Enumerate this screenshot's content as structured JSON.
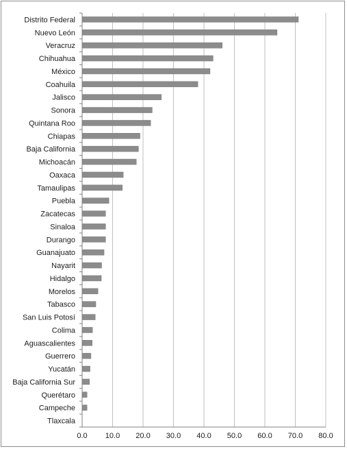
{
  "chart_data": {
    "type": "bar",
    "orientation": "horizontal",
    "categories": [
      "Distrito Federal",
      "Nuevo León",
      "Veracruz",
      "Chihuahua",
      "México",
      "Coahuila",
      "Jalisco",
      "Sonora",
      "Quintana Roo",
      "Chiapas",
      "Baja California",
      "Michoacán",
      "Oaxaca",
      "Tamaulipas",
      "Puebla",
      "Zacatecas",
      "Sinaloa",
      "Durango",
      "Guanajuato",
      "Nayarit",
      "Hidalgo",
      "Morelos",
      "Tabasco",
      "San Luis Potosí",
      "Colima",
      "Aguascalientes",
      "Guerrero",
      "Yucatán",
      "Baja California Sur",
      "Querétaro",
      "Campeche",
      "Tlaxcala"
    ],
    "values": [
      71.0,
      64.0,
      46.0,
      43.0,
      42.0,
      38.0,
      26.0,
      23.0,
      22.5,
      19.0,
      18.5,
      17.8,
      13.5,
      13.2,
      8.8,
      7.7,
      7.7,
      7.7,
      7.2,
      6.4,
      6.3,
      5.2,
      4.5,
      4.3,
      3.4,
      3.3,
      2.9,
      2.6,
      2.4,
      1.6,
      1.6,
      0.0
    ],
    "xlim": [
      0,
      80
    ],
    "xticks": [
      "0.0",
      "10.0",
      "20.0",
      "30.0",
      "40.0",
      "50.0",
      "60.0",
      "70.0",
      "80.0"
    ],
    "grid": "vertical",
    "bar_color": "#8c8c8c"
  }
}
